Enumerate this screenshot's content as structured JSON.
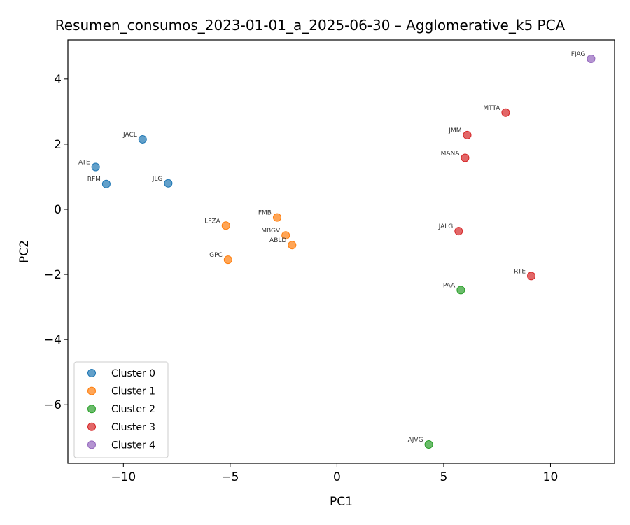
{
  "chart_data": {
    "type": "scatter",
    "title": "Resumen_consumos_2023-01-01_a_2025-06-30 – Agglomerative_k5 PCA",
    "xlabel": "PC1",
    "ylabel": "PC2",
    "xlim": [
      -12.6,
      13.0
    ],
    "ylim": [
      -7.8,
      5.2
    ],
    "xticks": [
      -10,
      -5,
      0,
      5,
      10
    ],
    "xtick_labels": [
      "−10",
      "−5",
      "0",
      "5",
      "10"
    ],
    "yticks": [
      4,
      2,
      0,
      -2,
      -4,
      -6
    ],
    "ytick_labels": [
      "4",
      "2",
      "0",
      "−2",
      "−4",
      "−6"
    ],
    "grid": false,
    "legend_position": "lower-left",
    "series": [
      {
        "name": "Cluster 0",
        "color": "#1f77b4",
        "points": [
          {
            "label": "JACL",
            "x": -9.1,
            "y": 2.15
          },
          {
            "label": "ATE",
            "x": -11.3,
            "y": 1.3
          },
          {
            "label": "RFM",
            "x": -10.8,
            "y": 0.78
          },
          {
            "label": "JLG",
            "x": -7.9,
            "y": 0.8
          }
        ]
      },
      {
        "name": "Cluster 1",
        "color": "#ff7f0e",
        "points": [
          {
            "label": "FMB",
            "x": -2.8,
            "y": -0.25
          },
          {
            "label": "LFZA",
            "x": -5.2,
            "y": -0.5
          },
          {
            "label": "MBGV",
            "x": -2.4,
            "y": -0.8
          },
          {
            "label": "ABLD",
            "x": -2.1,
            "y": -1.1
          },
          {
            "label": "GPC",
            "x": -5.1,
            "y": -1.55
          }
        ]
      },
      {
        "name": "Cluster 2",
        "color": "#2ca02c",
        "points": [
          {
            "label": "PAA",
            "x": 5.8,
            "y": -2.48
          },
          {
            "label": "AJVG",
            "x": 4.3,
            "y": -7.22
          }
        ]
      },
      {
        "name": "Cluster 3",
        "color": "#d62728",
        "points": [
          {
            "label": "MTTA",
            "x": 7.9,
            "y": 2.97
          },
          {
            "label": "JMM",
            "x": 6.1,
            "y": 2.28
          },
          {
            "label": "MANA",
            "x": 6.0,
            "y": 1.58
          },
          {
            "label": "JALG",
            "x": 5.7,
            "y": -0.67
          },
          {
            "label": "RTE",
            "x": 9.1,
            "y": -2.05
          }
        ]
      },
      {
        "name": "Cluster 4",
        "color": "#9467bd",
        "points": [
          {
            "label": "FJAG",
            "x": 11.9,
            "y": 4.62
          }
        ]
      }
    ]
  }
}
